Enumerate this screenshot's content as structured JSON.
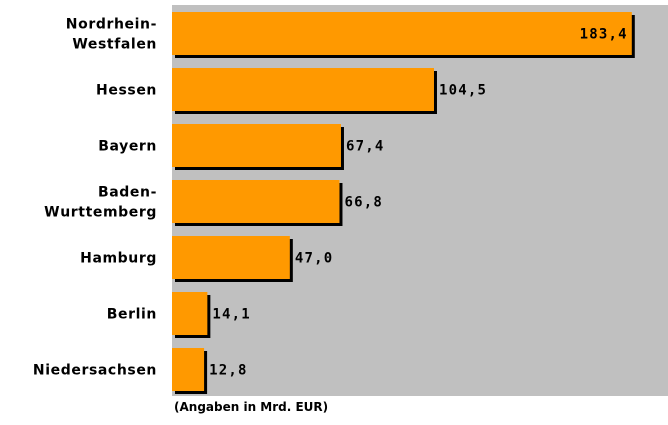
{
  "chart_data": {
    "type": "bar",
    "orientation": "horizontal",
    "categories": [
      "Nordrhein-Westfalen",
      "Hessen",
      "Bayern",
      "Baden-Wurttemberg",
      "Hamburg",
      "Berlin",
      "Niedersachsen"
    ],
    "category_lines": [
      [
        "Nordrhein-",
        "Westfalen"
      ],
      [
        "Hessen"
      ],
      [
        "Bayern"
      ],
      [
        "Baden-",
        "Wurttemberg"
      ],
      [
        "Hamburg"
      ],
      [
        "Berlin"
      ],
      [
        "Niedersachsen"
      ]
    ],
    "values": [
      183.4,
      104.5,
      67.4,
      66.8,
      47.0,
      14.1,
      12.8
    ],
    "value_labels": [
      "183,4",
      "104,5",
      "67,4",
      "66,8",
      "47,0",
      "14,1",
      "12,8"
    ],
    "xlim": [
      0,
      200
    ],
    "grid": false,
    "legend": "none",
    "note": "(Angaben in Mrd. EUR)",
    "colors": {
      "bar": "#ff9900",
      "bar_shadow": "#000000",
      "plot_background": "#c0c0c0"
    }
  }
}
